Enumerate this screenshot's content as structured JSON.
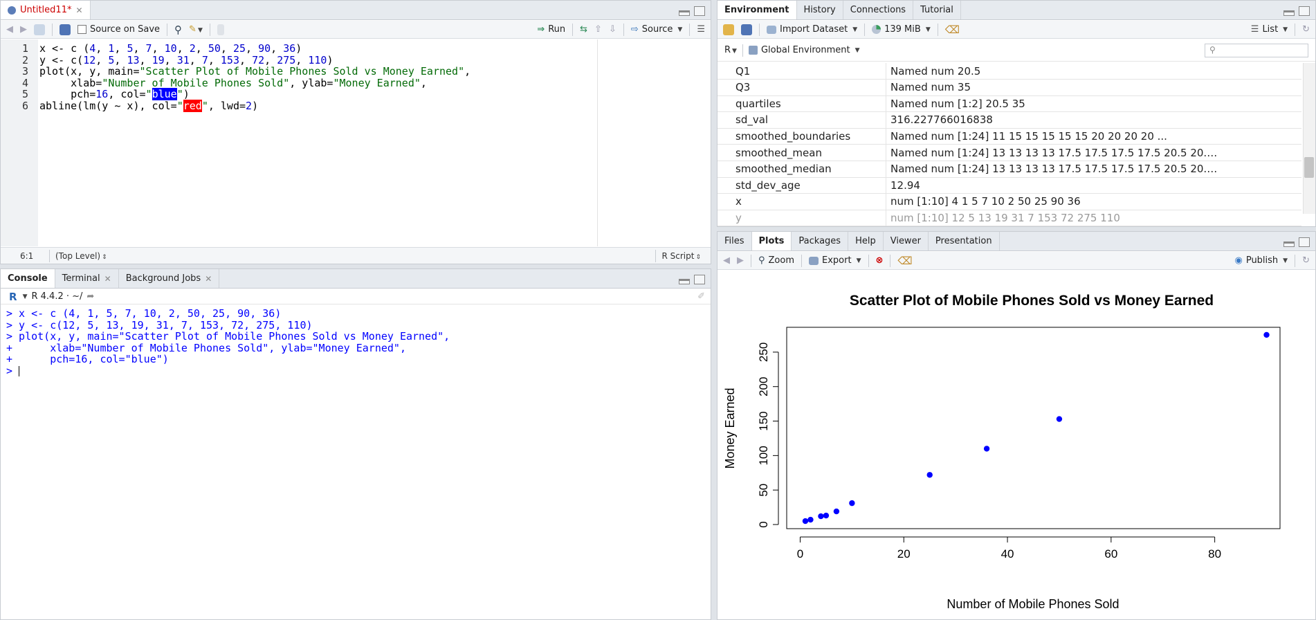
{
  "editor": {
    "tab_label": "Untitled11*",
    "source_on_save": "Source on Save",
    "run_label": "Run",
    "source_label": "Source",
    "code_lines": [
      {
        "n": "1",
        "parts": [
          [
            "x <- c (",
            "p"
          ],
          [
            "4",
            "num"
          ],
          [
            ", ",
            "p"
          ],
          [
            "1",
            "num"
          ],
          [
            ", ",
            "p"
          ],
          [
            "5",
            "num"
          ],
          [
            ", ",
            "p"
          ],
          [
            "7",
            "num"
          ],
          [
            ", ",
            "p"
          ],
          [
            "10",
            "num"
          ],
          [
            ", ",
            "p"
          ],
          [
            "2",
            "num"
          ],
          [
            ", ",
            "p"
          ],
          [
            "50",
            "num"
          ],
          [
            ", ",
            "p"
          ],
          [
            "25",
            "num"
          ],
          [
            ", ",
            "p"
          ],
          [
            "90",
            "num"
          ],
          [
            ", ",
            "p"
          ],
          [
            "36",
            "num"
          ],
          [
            ")",
            "p"
          ]
        ]
      },
      {
        "n": "2",
        "parts": [
          [
            "y <- c(",
            "p"
          ],
          [
            "12",
            "num"
          ],
          [
            ", ",
            "p"
          ],
          [
            "5",
            "num"
          ],
          [
            ", ",
            "p"
          ],
          [
            "13",
            "num"
          ],
          [
            ", ",
            "p"
          ],
          [
            "19",
            "num"
          ],
          [
            ", ",
            "p"
          ],
          [
            "31",
            "num"
          ],
          [
            ", ",
            "p"
          ],
          [
            "7",
            "num"
          ],
          [
            ", ",
            "p"
          ],
          [
            "153",
            "num"
          ],
          [
            ", ",
            "p"
          ],
          [
            "72",
            "num"
          ],
          [
            ", ",
            "p"
          ],
          [
            "275",
            "num"
          ],
          [
            ", ",
            "p"
          ],
          [
            "110",
            "num"
          ],
          [
            ")",
            "p"
          ]
        ]
      },
      {
        "n": "3",
        "parts": [
          [
            "plot(x, y, main=",
            "p"
          ],
          [
            "\"Scatter Plot of Mobile Phones Sold vs Money Earned\"",
            "str"
          ],
          [
            ",",
            "p"
          ]
        ]
      },
      {
        "n": "4",
        "parts": [
          [
            "     xlab=",
            "p"
          ],
          [
            "\"Number of Mobile Phones Sold\"",
            "str"
          ],
          [
            ", ylab=",
            "p"
          ],
          [
            "\"Money Earned\"",
            "str"
          ],
          [
            ",",
            "p"
          ]
        ]
      },
      {
        "n": "5",
        "parts": [
          [
            "     pch=",
            "p"
          ],
          [
            "16",
            "num"
          ],
          [
            ", col=",
            "p"
          ],
          [
            "\"",
            "str"
          ],
          [
            "blue",
            "hlb"
          ],
          [
            "\"",
            "str"
          ],
          [
            ")",
            "p"
          ]
        ]
      },
      {
        "n": "6",
        "parts": [
          [
            "abline(lm(y ~ x), col=",
            "p"
          ],
          [
            "\"",
            "str"
          ],
          [
            "red",
            "hlr"
          ],
          [
            "\"",
            "str"
          ],
          [
            ", lwd=",
            "p"
          ],
          [
            "2",
            "num"
          ],
          [
            ")",
            "p"
          ]
        ]
      }
    ],
    "cursor_pos": "6:1",
    "scope": "(Top Level)",
    "file_type": "R Script"
  },
  "console": {
    "tabs": [
      "Console",
      "Terminal",
      "Background Jobs"
    ],
    "version": "R 4.4.2 · ~/",
    "lines": [
      "> x <- c (4, 1, 5, 7, 10, 2, 50, 25, 90, 36)",
      "> y <- c(12, 5, 13, 19, 31, 7, 153, 72, 275, 110)",
      "> plot(x, y, main=\"Scatter Plot of Mobile Phones Sold vs Money Earned\",",
      "+      xlab=\"Number of Mobile Phones Sold\", ylab=\"Money Earned\",",
      "+      pch=16, col=\"blue\")",
      "> "
    ]
  },
  "environment": {
    "tabs": [
      "Environment",
      "History",
      "Connections",
      "Tutorial"
    ],
    "import_dataset": "Import Dataset",
    "memory": "139 MiB",
    "view_mode": "List",
    "language": "R",
    "scope": "Global Environment",
    "rows": [
      {
        "name": "Q1",
        "value": "Named num 20.5"
      },
      {
        "name": "Q3",
        "value": "Named num 35"
      },
      {
        "name": "quartiles",
        "value": "Named num [1:2] 20.5 35"
      },
      {
        "name": "sd_val",
        "value": "316.227766016838"
      },
      {
        "name": "smoothed_boundaries",
        "value": "Named num [1:24] 11 15 15 15 15 15 20 20 20 20 ..."
      },
      {
        "name": "smoothed_mean",
        "value": "Named num [1:24] 13 13 13 13 17.5 17.5 17.5 17.5 20.5 20.…"
      },
      {
        "name": "smoothed_median",
        "value": "Named num [1:24] 13 13 13 13 17.5 17.5 17.5 17.5 20.5 20.…"
      },
      {
        "name": "std_dev_age",
        "value": "12.94"
      },
      {
        "name": "x",
        "value": "num [1:10] 4 1 5 7 10 2 50 25 90 36"
      },
      {
        "name": "y",
        "value": "num [1:10] 12 5 13 19 31 7 153 72 275 110"
      }
    ]
  },
  "files_pane": {
    "tabs": [
      "Files",
      "Plots",
      "Packages",
      "Help",
      "Viewer",
      "Presentation"
    ],
    "zoom_label": "Zoom",
    "export_label": "Export",
    "publish_label": "Publish"
  },
  "chart_data": {
    "type": "scatter",
    "title": "Scatter Plot of Mobile Phones Sold vs Money Earned",
    "xlabel": "Number of Mobile Phones Sold",
    "ylabel": "Money Earned",
    "x": [
      4,
      1,
      5,
      7,
      10,
      2,
      50,
      25,
      90,
      36
    ],
    "y": [
      12,
      5,
      13,
      19,
      31,
      7,
      153,
      72,
      275,
      110
    ],
    "xlim": [
      -2.6,
      92.6
    ],
    "ylim": [
      -6,
      286
    ],
    "xticks": [
      0,
      20,
      40,
      60,
      80
    ],
    "yticks": [
      0,
      50,
      100,
      150,
      200,
      250
    ],
    "point_color": "#0000ff",
    "grid": false
  }
}
